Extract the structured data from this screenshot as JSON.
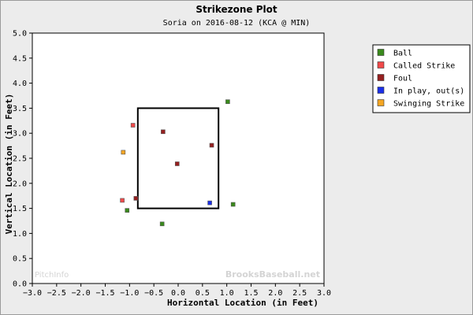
{
  "chart_data": {
    "type": "scatter",
    "title": "Strikezone Plot",
    "subtitle": "Soria on 2016-08-12 (KCA @ MIN)",
    "xlabel": "Horizontal Location (in Feet)",
    "ylabel": "Vertical Location (in Feet)",
    "xlim": [
      -3.0,
      3.0
    ],
    "ylim": [
      0.0,
      5.0
    ],
    "x_ticks": [
      "−3.0",
      "−2.5",
      "−2.0",
      "−1.5",
      "−1.0",
      "−0.5",
      "0.0",
      "0.5",
      "1.0",
      "1.5",
      "2.0",
      "2.5",
      "3.0"
    ],
    "y_ticks": [
      "0.0",
      "0.5",
      "1.0",
      "1.5",
      "2.0",
      "2.5",
      "3.0",
      "3.5",
      "4.0",
      "4.5",
      "5.0"
    ],
    "grid": false,
    "legend_position": "top-right",
    "strike_zone": {
      "x": [
        -0.83,
        0.83
      ],
      "y": [
        1.5,
        3.5
      ]
    },
    "series": [
      {
        "name": "Ball",
        "color": "#3a8a1c",
        "points": [
          [
            1.02,
            3.63
          ],
          [
            -1.05,
            1.46
          ],
          [
            1.13,
            1.58
          ],
          [
            -0.33,
            1.19
          ]
        ]
      },
      {
        "name": "Called Strike",
        "color": "#f04a4a",
        "points": [
          [
            -0.93,
            3.16
          ],
          [
            -1.15,
            1.66
          ]
        ]
      },
      {
        "name": "Foul",
        "color": "#962020",
        "points": [
          [
            -0.31,
            3.03
          ],
          [
            0.69,
            2.76
          ],
          [
            -0.02,
            2.39
          ],
          [
            -0.87,
            1.7
          ]
        ]
      },
      {
        "name": "In play, out(s)",
        "color": "#1a2fe8",
        "points": [
          [
            0.65,
            1.61
          ]
        ]
      },
      {
        "name": "Swinging Strike",
        "color": "#f5a623",
        "points": [
          [
            -1.13,
            2.62
          ]
        ]
      }
    ]
  },
  "watermark": {
    "left": "PitchInfo",
    "right": "BrooksBaseball.net"
  }
}
